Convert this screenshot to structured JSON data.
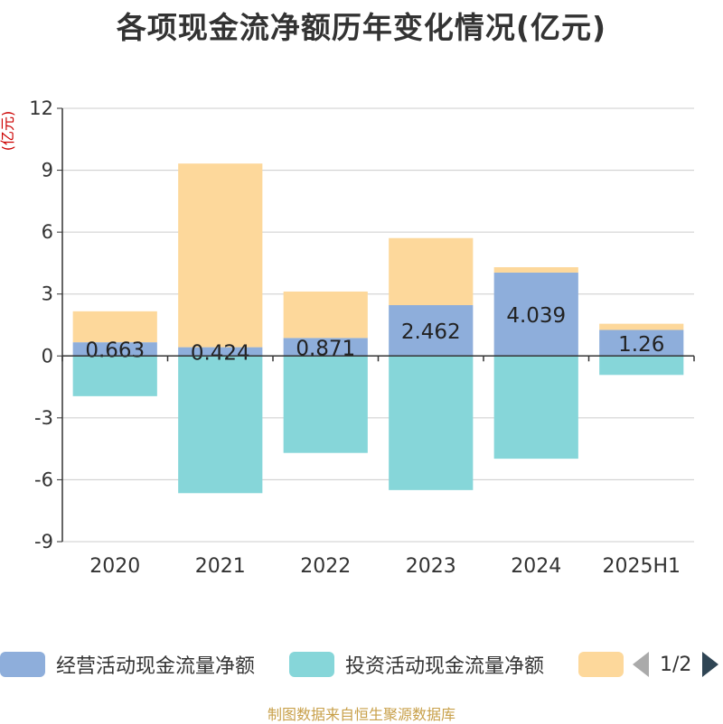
{
  "title": "各项现金流净额历年变化情况(亿元)",
  "source": "制图数据来自恒生聚源数据库",
  "legend": {
    "items": [
      {
        "label": "经营活动现金流量净额",
        "color": "#8eaedb"
      },
      {
        "label": "投资活动现金流量净额",
        "color": "#86d6d9"
      },
      {
        "label": "",
        "color": "#fdd89b"
      }
    ],
    "pager": {
      "text": "1/2"
    }
  },
  "chart_data": {
    "type": "bar",
    "stacked": true,
    "ylabel": "(亿元)",
    "ylim": [
      -9,
      12
    ],
    "yticks": [
      -9,
      -6,
      -3,
      0,
      3,
      6,
      9,
      12
    ],
    "grid": true,
    "legend_position": "bottom",
    "categories": [
      "2020",
      "2021",
      "2022",
      "2023",
      "2024",
      "2025H1"
    ],
    "series": [
      {
        "name": "经营活动现金流量净额",
        "color": "#8eaedb",
        "values": [
          0.663,
          0.424,
          0.871,
          2.462,
          4.039,
          1.26
        ],
        "labels": [
          "0.663",
          "0.424",
          "0.871",
          "2.462",
          "4.039",
          "1.26"
        ]
      },
      {
        "name": "投资活动现金流量净额",
        "color": "#86d6d9",
        "values": [
          -1.95,
          -6.65,
          -4.7,
          -6.5,
          -4.98,
          -0.92
        ]
      },
      {
        "color": "#fdd89b",
        "values": [
          1.5,
          8.9,
          2.25,
          3.25,
          0.26,
          0.3
        ]
      }
    ]
  }
}
